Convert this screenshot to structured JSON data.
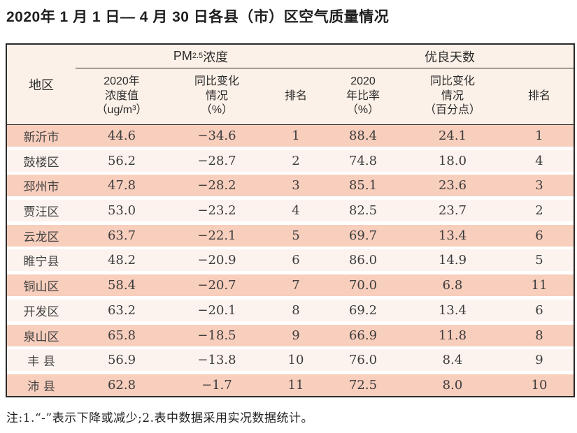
{
  "page": {
    "title": "2020年 1 月 1 日— 4 月 30 日各县（市）区空气质量情况",
    "note": "注:1.“-”表示下降或减少;2.表中数据采用实况数据统计。"
  },
  "table": {
    "corner_header": "地区",
    "group_headers": {
      "pm25_prefix": "PM",
      "pm25_sub": "2.5",
      "pm25_suffix": " 浓度",
      "good_days": "优良天数"
    },
    "sub_headers": {
      "pm25_value": "2020年\n浓度值\n（ug/m³）",
      "pm25_change": "同比变化\n情况\n（%）",
      "pm25_rank": "排名",
      "good_ratio": "2020\n年比率\n（%）",
      "good_change": "同比变化\n情况\n（百分点）",
      "good_rank": "排名"
    },
    "rows": [
      {
        "region": "新沂市",
        "pm25_value": "44.6",
        "pm25_change": "−34.6",
        "pm25_rank": "1",
        "good_ratio": "88.4",
        "good_change": "24.1",
        "good_rank": "1"
      },
      {
        "region": "鼓楼区",
        "pm25_value": "56.2",
        "pm25_change": "−28.7",
        "pm25_rank": "2",
        "good_ratio": "74.8",
        "good_change": "18.0",
        "good_rank": "4"
      },
      {
        "region": "邳州市",
        "pm25_value": "47.8",
        "pm25_change": "−28.2",
        "pm25_rank": "3",
        "good_ratio": "85.1",
        "good_change": "23.6",
        "good_rank": "3"
      },
      {
        "region": "贾汪区",
        "pm25_value": "53.0",
        "pm25_change": "−23.2",
        "pm25_rank": "4",
        "good_ratio": "82.5",
        "good_change": "23.7",
        "good_rank": "2"
      },
      {
        "region": "云龙区",
        "pm25_value": "63.7",
        "pm25_change": "−22.1",
        "pm25_rank": "5",
        "good_ratio": "69.7",
        "good_change": "13.4",
        "good_rank": "6"
      },
      {
        "region": "睢宁县",
        "pm25_value": "48.2",
        "pm25_change": "−20.9",
        "pm25_rank": "6",
        "good_ratio": "86.0",
        "good_change": "14.9",
        "good_rank": "5"
      },
      {
        "region": "铜山区",
        "pm25_value": "58.4",
        "pm25_change": "−20.7",
        "pm25_rank": "7",
        "good_ratio": "70.0",
        "good_change": "6.8",
        "good_rank": "11"
      },
      {
        "region": "开发区",
        "pm25_value": "63.2",
        "pm25_change": "−20.1",
        "pm25_rank": "8",
        "good_ratio": "69.2",
        "good_change": "13.4",
        "good_rank": "6"
      },
      {
        "region": "泉山区",
        "pm25_value": "65.8",
        "pm25_change": "−18.5",
        "pm25_rank": "9",
        "good_ratio": "66.9",
        "good_change": "11.8",
        "good_rank": "8"
      },
      {
        "region": "丰 县",
        "pm25_value": "56.9",
        "pm25_change": "−13.8",
        "pm25_rank": "10",
        "good_ratio": "76.0",
        "good_change": "8.4",
        "good_rank": "9"
      },
      {
        "region": "沛 县",
        "pm25_value": "62.8",
        "pm25_change": "−1.7",
        "pm25_rank": "11",
        "good_ratio": "72.5",
        "good_change": "8.0",
        "good_rank": "10"
      }
    ]
  },
  "colors": {
    "row_pink": "#f8cebd",
    "row_light": "#fdf3ee",
    "header_bg": "#fcf1e8",
    "border": "#2a2a2a"
  }
}
